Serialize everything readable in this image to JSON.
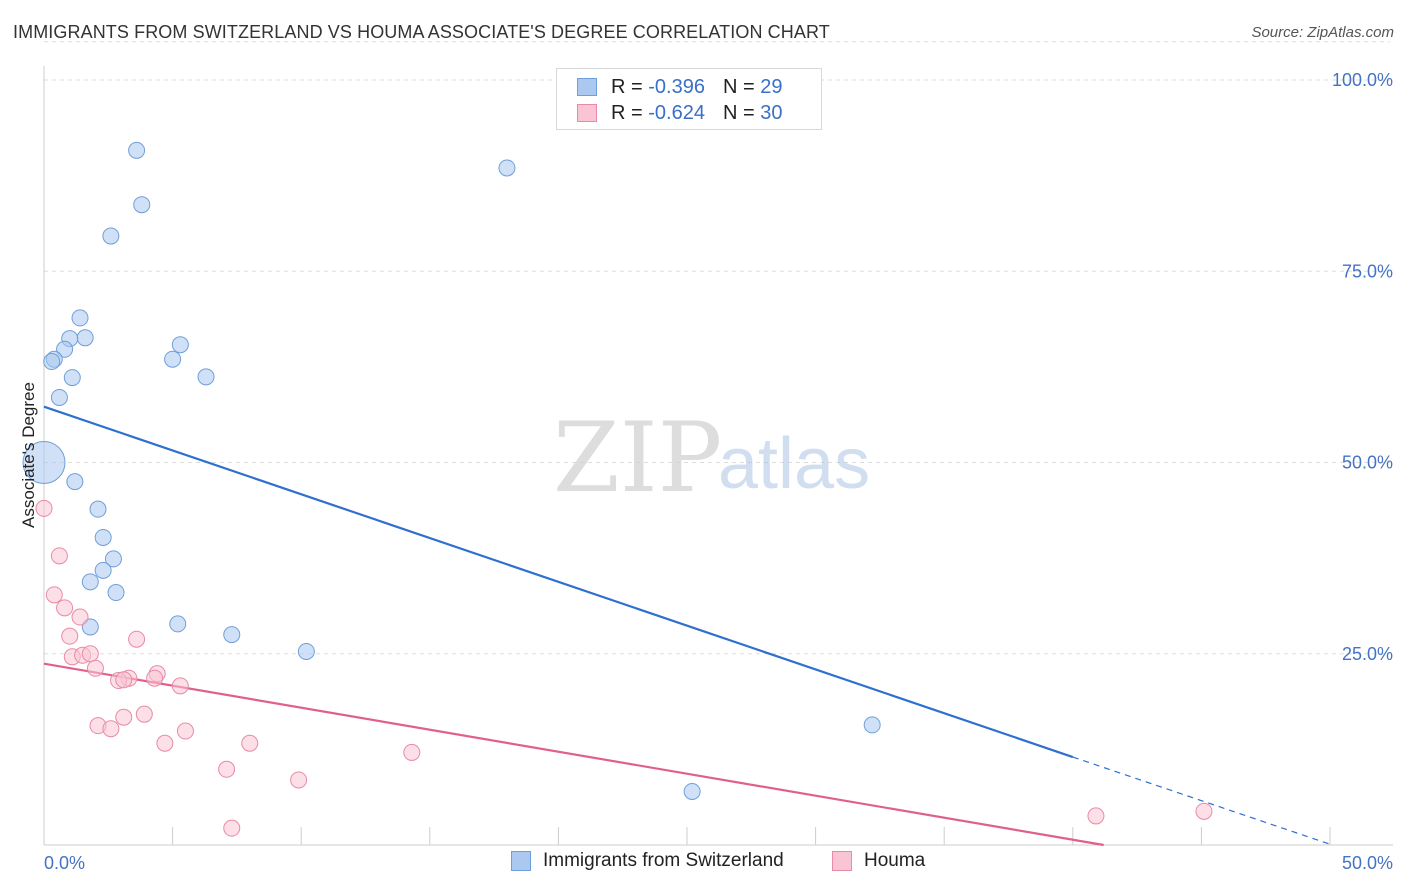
{
  "title": "IMMIGRANTS FROM SWITZERLAND VS HOUMA ASSOCIATE'S DEGREE CORRELATION CHART",
  "source": "Source: ZipAtlas.com",
  "watermark": {
    "zip": "ZIP",
    "atlas": "atlas"
  },
  "stats": [
    {
      "r_label": "R =",
      "r_value": "-0.396",
      "n_label": "N =",
      "n_value": "29",
      "color": "#aac8f0",
      "border": "#6f9fd8"
    },
    {
      "r_label": "R =",
      "r_value": "-0.624",
      "n_label": "N =",
      "n_value": "30",
      "color": "#f9c4d4",
      "border": "#e88aa8"
    }
  ],
  "legend": [
    {
      "label": "Immigrants from Switzerland",
      "color": "#aac8f0",
      "border": "#6f9fd8"
    },
    {
      "label": "Houma",
      "color": "#f9c4d4",
      "border": "#e88aa8"
    }
  ],
  "chart_data": {
    "type": "scatter",
    "title": "IMMIGRANTS FROM SWITZERLAND VS HOUMA ASSOCIATE'S DEGREE CORRELATION CHART",
    "xlabel": "",
    "ylabel": "Associate's Degree",
    "xlim": [
      0,
      50
    ],
    "ylim": [
      0,
      100
    ],
    "x_tick_labels": [
      "0.0%",
      "50.0%"
    ],
    "y_tick_labels": [
      "25.0%",
      "50.0%",
      "75.0%",
      "100.0%"
    ],
    "y_ticks": [
      25,
      50,
      75,
      100
    ],
    "series": [
      {
        "name": "Immigrants from Switzerland",
        "color": "#aac8f0",
        "stroke": "#6f9fd8",
        "line_color": "#2f6fd0",
        "points": [
          {
            "x": 3.6,
            "y": 90.8
          },
          {
            "x": 3.8,
            "y": 83.7
          },
          {
            "x": 2.6,
            "y": 79.6
          },
          {
            "x": 18.0,
            "y": 88.5
          },
          {
            "x": 1.4,
            "y": 68.9
          },
          {
            "x": 1.6,
            "y": 66.3
          },
          {
            "x": 1.0,
            "y": 66.2
          },
          {
            "x": 0.8,
            "y": 64.8
          },
          {
            "x": 0.4,
            "y": 63.5
          },
          {
            "x": 0.3,
            "y": 63.2
          },
          {
            "x": 5.3,
            "y": 65.4
          },
          {
            "x": 5.0,
            "y": 63.5
          },
          {
            "x": 6.3,
            "y": 61.2
          },
          {
            "x": 1.1,
            "y": 61.1
          },
          {
            "x": 0.6,
            "y": 58.5
          },
          {
            "x": 0.0,
            "y": 50.0,
            "size": "large"
          },
          {
            "x": 1.2,
            "y": 47.5
          },
          {
            "x": 2.1,
            "y": 43.9
          },
          {
            "x": 2.3,
            "y": 40.2
          },
          {
            "x": 2.7,
            "y": 37.4
          },
          {
            "x": 2.3,
            "y": 35.9
          },
          {
            "x": 1.8,
            "y": 34.4
          },
          {
            "x": 2.8,
            "y": 33.0
          },
          {
            "x": 1.8,
            "y": 28.5
          },
          {
            "x": 5.2,
            "y": 28.9
          },
          {
            "x": 7.3,
            "y": 27.5
          },
          {
            "x": 10.2,
            "y": 25.3
          },
          {
            "x": 32.2,
            "y": 15.7
          },
          {
            "x": 25.2,
            "y": 7.0
          }
        ],
        "trend": {
          "x1": 0,
          "y1": 57.3,
          "x2": 40,
          "y2": 11.5,
          "dash_to_x": 50,
          "dash_to_y": 0.1
        }
      },
      {
        "name": "Houma",
        "color": "#f9c4d4",
        "stroke": "#e88aa8",
        "line_color": "#e0608d",
        "points": [
          {
            "x": 0.0,
            "y": 44.0
          },
          {
            "x": 0.6,
            "y": 37.8
          },
          {
            "x": 0.4,
            "y": 32.7
          },
          {
            "x": 0.8,
            "y": 31.0
          },
          {
            "x": 1.4,
            "y": 29.8
          },
          {
            "x": 1.0,
            "y": 27.3
          },
          {
            "x": 3.6,
            "y": 26.9
          },
          {
            "x": 1.1,
            "y": 24.6
          },
          {
            "x": 1.5,
            "y": 24.8
          },
          {
            "x": 1.8,
            "y": 25.0
          },
          {
            "x": 2.0,
            "y": 23.1
          },
          {
            "x": 4.4,
            "y": 22.4
          },
          {
            "x": 4.3,
            "y": 21.8
          },
          {
            "x": 3.3,
            "y": 21.8
          },
          {
            "x": 2.9,
            "y": 21.5
          },
          {
            "x": 3.1,
            "y": 21.6
          },
          {
            "x": 5.3,
            "y": 20.8
          },
          {
            "x": 3.9,
            "y": 17.1
          },
          {
            "x": 3.1,
            "y": 16.7
          },
          {
            "x": 2.1,
            "y": 15.6
          },
          {
            "x": 2.6,
            "y": 15.2
          },
          {
            "x": 5.5,
            "y": 14.9
          },
          {
            "x": 4.7,
            "y": 13.3
          },
          {
            "x": 8.0,
            "y": 13.3
          },
          {
            "x": 14.3,
            "y": 12.1
          },
          {
            "x": 7.1,
            "y": 9.9
          },
          {
            "x": 9.9,
            "y": 8.5
          },
          {
            "x": 7.3,
            "y": 2.2
          },
          {
            "x": 40.9,
            "y": 3.8
          },
          {
            "x": 45.1,
            "y": 4.4
          }
        ],
        "trend": {
          "x1": 0,
          "y1": 23.7,
          "x2": 41.2,
          "y2": 0.0
        }
      }
    ]
  }
}
